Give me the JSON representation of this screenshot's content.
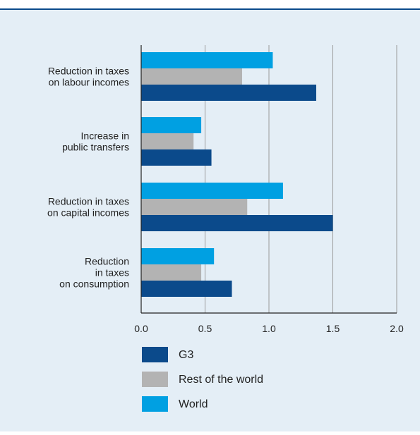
{
  "chart_data": {
    "type": "bar",
    "orientation": "horizontal",
    "categories": [
      [
        "Reduction in taxes",
        "on labour incomes"
      ],
      [
        "Increase in",
        "public transfers"
      ],
      [
        "Reduction in taxes",
        "on capital incomes"
      ],
      [
        "Reduction",
        "in taxes",
        "on consumption"
      ]
    ],
    "series": [
      {
        "name": "World",
        "color": "#00a0e2",
        "values": [
          1.03,
          0.47,
          1.11,
          0.57
        ]
      },
      {
        "name": "Rest of the world",
        "color": "#b3b3b3",
        "values": [
          0.79,
          0.41,
          0.83,
          0.47
        ]
      },
      {
        "name": "G3",
        "color": "#0b4a8b",
        "values": [
          1.37,
          0.55,
          1.5,
          0.71
        ]
      }
    ],
    "legend_order": [
      "G3",
      "Rest of the world",
      "World"
    ],
    "xlim": [
      0,
      2.0
    ],
    "xticks": [
      "0.0",
      "0.5",
      "1.0",
      "1.5",
      "2.0"
    ],
    "grid": "vertical",
    "legend_position": "bottom"
  }
}
